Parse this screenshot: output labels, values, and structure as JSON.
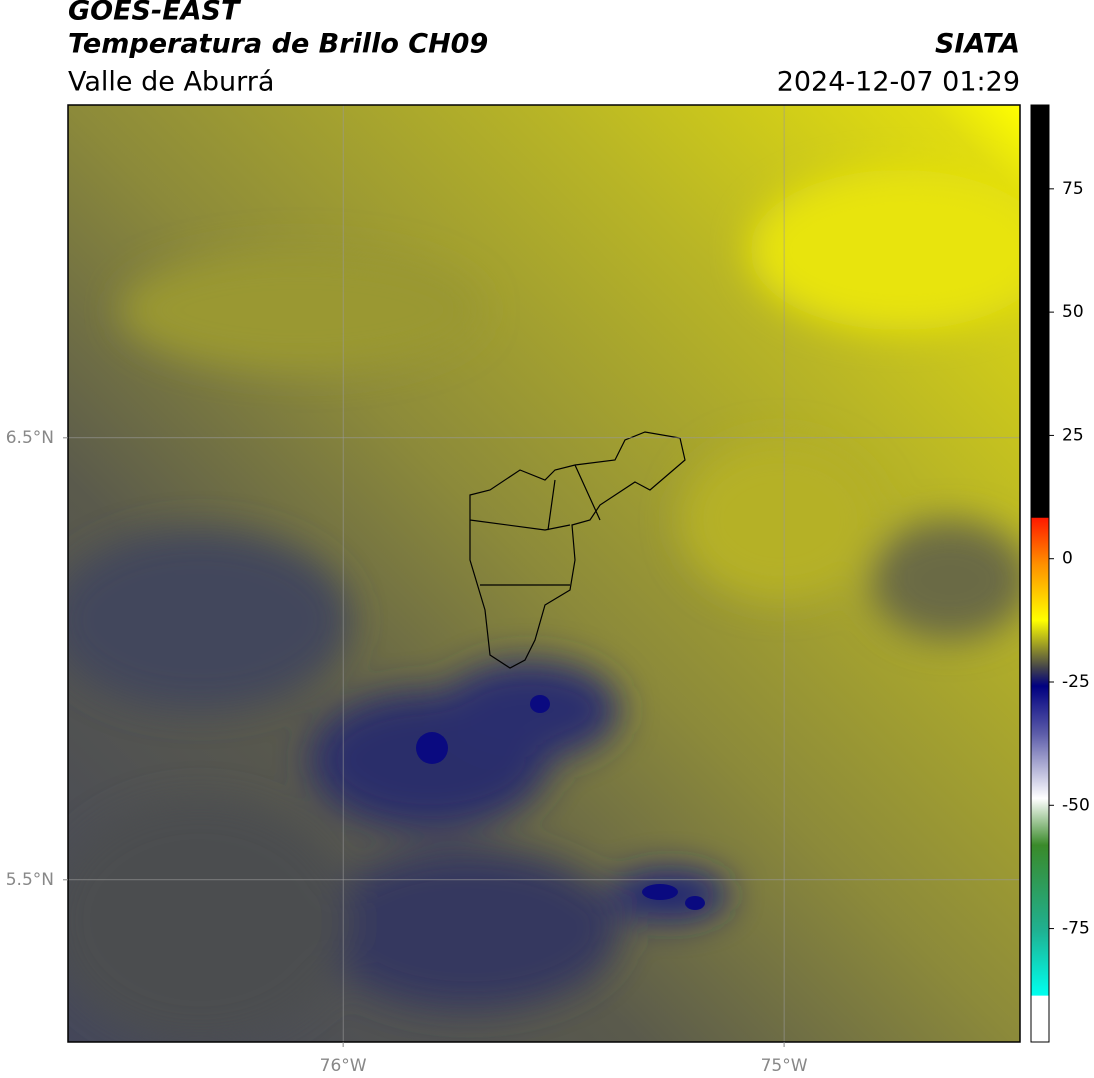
{
  "header": {
    "product": "GOES-EAST",
    "title": "Temperatura de Brillo CH09",
    "region": "Valle de Aburrá",
    "source": "SIATA",
    "timestamp": "2024-12-07 01:29"
  },
  "map": {
    "xlim": [
      -76.624,
      -74.465
    ],
    "ylim": [
      5.133,
      7.253
    ],
    "xticks": [
      {
        "value": -76,
        "label": "76°W"
      },
      {
        "value": -75,
        "label": "75°W"
      }
    ],
    "yticks": [
      {
        "value": 6.5,
        "label": "6.5°N"
      },
      {
        "value": 5.5,
        "label": "5.5°N"
      }
    ],
    "grid": true
  },
  "colorbar": {
    "lim": [
      -98,
      92
    ],
    "ticks": [
      75,
      50,
      25,
      0,
      -25,
      -50,
      -75
    ]
  }
}
